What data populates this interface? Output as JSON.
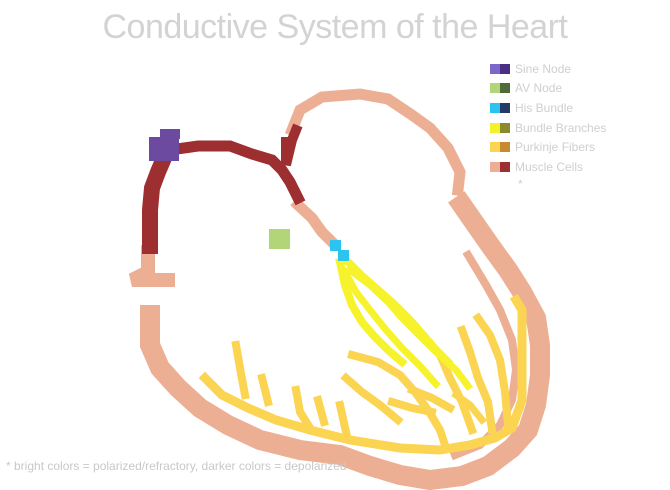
{
  "title": "Conductive System of the Heart",
  "legend": {
    "items": [
      {
        "label": "Sine Node",
        "bright": "#7b68c9",
        "dark": "#4b2f84"
      },
      {
        "label": "AV Node",
        "bright": "#b2d57a",
        "dark": "#4f6b3c"
      },
      {
        "label": "His Bundle",
        "bright": "#2bc3f0",
        "dark": "#263a66"
      },
      {
        "label": "Bundle Branches",
        "bright": "#f4f12a",
        "dark": "#8a8a2a"
      },
      {
        "label": "Purkinje Fibers",
        "bright": "#fbd451",
        "dark": "#c98a2e"
      },
      {
        "label": "Muscle Cells",
        "bright": "#ecaf93",
        "dark": "#9e2f31"
      }
    ],
    "note": "*"
  },
  "footnote": "* bright colors = polarized/refractory, darker colors = depolarized",
  "colors": {
    "sine_node": "#6b4aa0",
    "av_node": "#b2d57a",
    "his_bundle": "#2bc3f0",
    "bundle_branches": "#f6f22c",
    "purkinje": "#fbd451",
    "muscle": "#ecaf93",
    "muscle_depolarized": "#9e2f31"
  }
}
